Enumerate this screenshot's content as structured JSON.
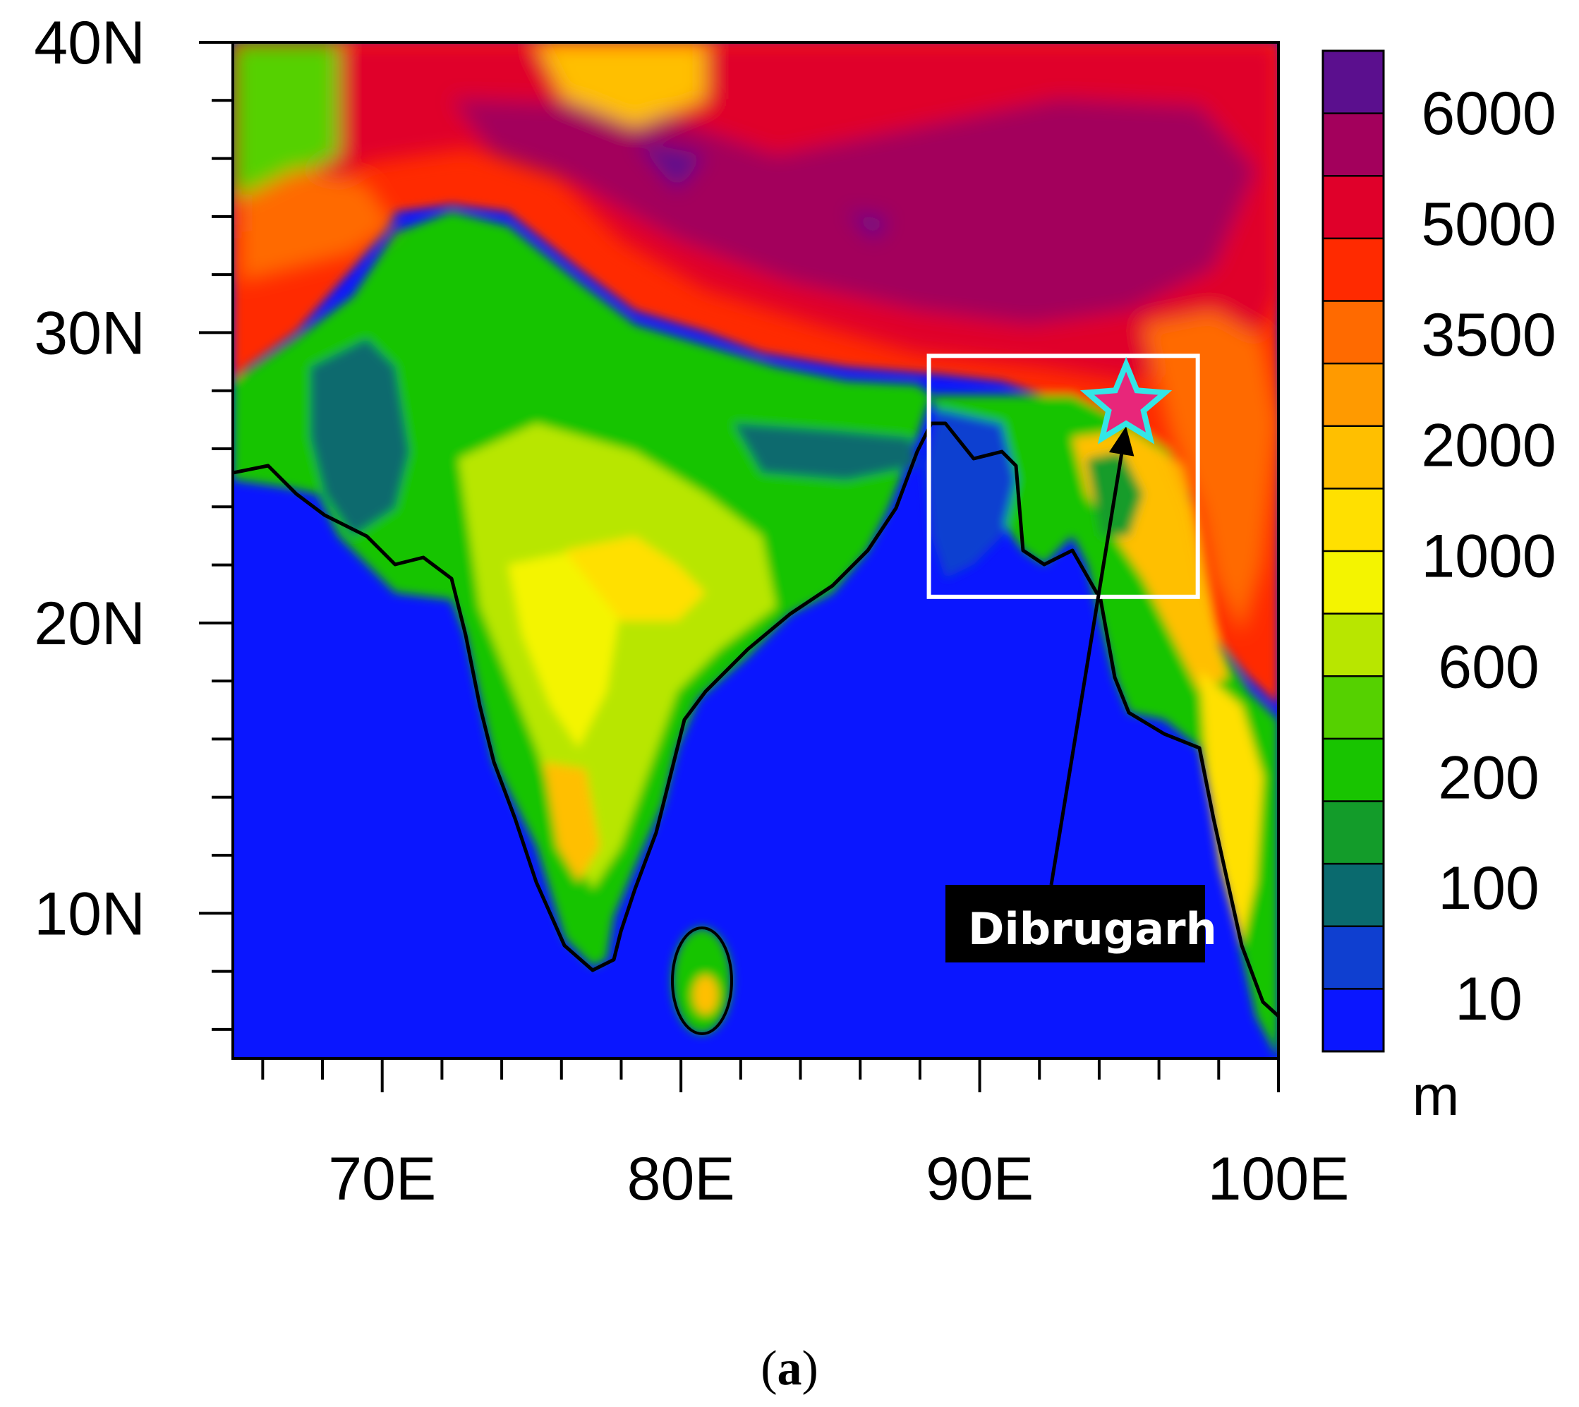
{
  "map": {
    "lat_axis": {
      "ticks": [
        {
          "value": 40,
          "label": "40N"
        },
        {
          "value": 30,
          "label": "30N"
        },
        {
          "value": 20,
          "label": "20N"
        },
        {
          "value": 10,
          "label": "10N"
        }
      ]
    },
    "lon_axis": {
      "ticks": [
        {
          "value": 70,
          "label": "70E"
        },
        {
          "value": 80,
          "label": "80E"
        },
        {
          "value": 90,
          "label": "90E"
        },
        {
          "value": 100,
          "label": "100E"
        }
      ]
    },
    "colorbar": {
      "unit": "m",
      "levels": [
        "6000",
        "5000",
        "3500",
        "2000",
        "1000",
        "600",
        "200",
        "100",
        "10"
      ],
      "colors": [
        "#5b0f8e",
        "#a3005c",
        "#e0002a",
        "#ff2a00",
        "#ff6a00",
        "#ff9a00",
        "#ffbf00",
        "#ffe000",
        "#f4f400",
        "#b8e600",
        "#55d100",
        "#18c400",
        "#139c2a",
        "#0a6a6e",
        "#0f3fd0",
        "#0a16ff"
      ]
    },
    "station": {
      "name": "Dibrugarh",
      "lon": 94.9,
      "lat": 27.5,
      "marker_fill": "#e8267a",
      "marker_stroke": "#33e6e6"
    },
    "highlight_box": {
      "lon_min": 88.3,
      "lon_max": 97.3,
      "lat_min": 20.9,
      "lat_max": 29.2,
      "color": "#ffffff"
    },
    "ocean_color": "#0a16ff"
  },
  "caption": {
    "open": "(",
    "letter": "a",
    "close": ")"
  }
}
